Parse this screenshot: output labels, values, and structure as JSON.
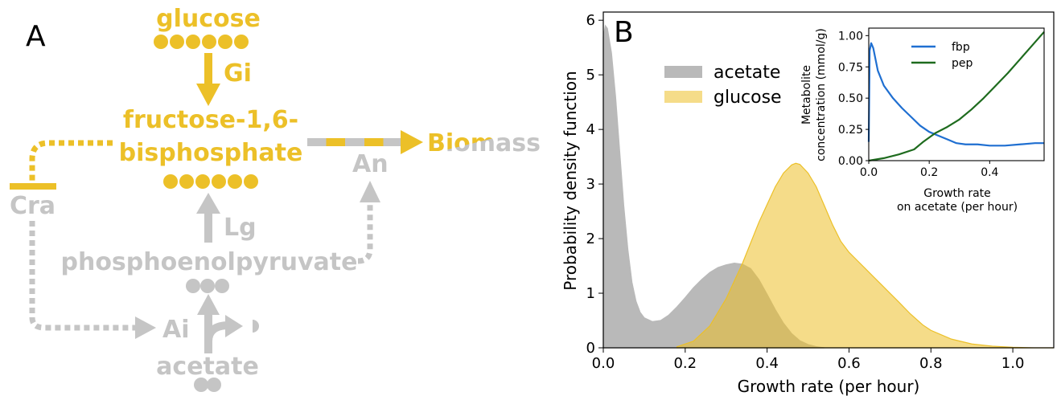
{
  "panel_a": {
    "letter": "A",
    "nodes": {
      "glucose": "glucose",
      "fbp_line1": "fructose-1,6-",
      "fbp_line2": "bisphosphate",
      "pep": "phosphoenolpyruvate",
      "acetate": "acetate",
      "biomass": "Biomass",
      "cra": "Cra"
    },
    "reactions": {
      "gi": "Gi",
      "lg": "Lg",
      "an": "An",
      "ai": "Ai"
    },
    "colors": {
      "glucose_path": "#ecc028",
      "acetate_path": "#c5c5c5"
    }
  },
  "panel_b": {
    "letter": "B",
    "chart_data": [
      {
        "type": "area",
        "xlabel": "Growth rate (per hour)",
        "ylabel": "Probability density function",
        "xlim": [
          0.0,
          1.1
        ],
        "ylim": [
          0,
          6.15
        ],
        "xticks": [
          "0.0",
          "0.2",
          "0.4",
          "0.6",
          "0.8",
          "1.0"
        ],
        "xtick_values": [
          0.0,
          0.2,
          0.4,
          0.6,
          0.8,
          1.0
        ],
        "yticks": [
          "0",
          "1",
          "2",
          "3",
          "4",
          "5",
          "6"
        ],
        "ytick_values": [
          0,
          1,
          2,
          3,
          4,
          5,
          6
        ],
        "legend_position": "top-left",
        "series": [
          {
            "name": "acetate",
            "color": "#b9b9b9",
            "x": [
              0.0,
              0.005,
              0.01,
              0.02,
              0.03,
              0.04,
              0.05,
              0.06,
              0.07,
              0.08,
              0.09,
              0.1,
              0.12,
              0.14,
              0.16,
              0.18,
              0.2,
              0.22,
              0.24,
              0.26,
              0.28,
              0.3,
              0.32,
              0.34,
              0.36,
              0.38,
              0.4,
              0.42,
              0.44,
              0.46,
              0.48,
              0.5,
              0.52,
              0.54
            ],
            "y": [
              5.7,
              5.9,
              5.85,
              5.4,
              4.6,
              3.6,
              2.6,
              1.8,
              1.2,
              0.85,
              0.65,
              0.55,
              0.48,
              0.5,
              0.6,
              0.75,
              0.92,
              1.1,
              1.25,
              1.38,
              1.47,
              1.52,
              1.55,
              1.53,
              1.45,
              1.25,
              0.98,
              0.7,
              0.45,
              0.26,
              0.13,
              0.06,
              0.02,
              0.0
            ]
          },
          {
            "name": "glucose",
            "color": "#ecc028",
            "x": [
              0.18,
              0.22,
              0.26,
              0.3,
              0.34,
              0.38,
              0.42,
              0.44,
              0.46,
              0.47,
              0.48,
              0.5,
              0.52,
              0.54,
              0.56,
              0.58,
              0.6,
              0.62,
              0.64,
              0.66,
              0.68,
              0.7,
              0.72,
              0.75,
              0.78,
              0.8,
              0.85,
              0.9,
              0.95,
              1.0,
              1.05,
              1.1
            ],
            "y": [
              0.02,
              0.12,
              0.4,
              0.9,
              1.55,
              2.3,
              2.95,
              3.2,
              3.35,
              3.38,
              3.36,
              3.2,
              2.95,
              2.6,
              2.25,
              1.95,
              1.75,
              1.6,
              1.45,
              1.3,
              1.15,
              1.0,
              0.85,
              0.62,
              0.42,
              0.32,
              0.16,
              0.07,
              0.03,
              0.01,
              0.0,
              0.0
            ]
          }
        ]
      },
      {
        "type": "line",
        "xlabel_line1": "Growth rate",
        "xlabel_line2": "on acetate (per hour)",
        "ylabel_line1": "Metabolite",
        "ylabel_line2": "concentration (mmol/g)",
        "xlim": [
          0.0,
          0.58
        ],
        "ylim": [
          0.0,
          1.06
        ],
        "xticks": [
          "0.0",
          "0.2",
          "0.4"
        ],
        "xtick_values": [
          0.0,
          0.2,
          0.4
        ],
        "yticks": [
          "0.00",
          "0.25",
          "0.50",
          "0.75",
          "1.00"
        ],
        "ytick_values": [
          0.0,
          0.25,
          0.5,
          0.75,
          1.0
        ],
        "legend_position": "top-center",
        "series": [
          {
            "name": "fbp",
            "color": "#1f6fd1",
            "x": [
              0.0,
              0.003,
              0.008,
              0.015,
              0.03,
              0.05,
              0.08,
              0.11,
              0.14,
              0.17,
              0.2,
              0.23,
              0.26,
              0.29,
              0.32,
              0.36,
              0.4,
              0.45,
              0.5,
              0.55,
              0.58
            ],
            "y": [
              0.15,
              0.88,
              0.94,
              0.9,
              0.72,
              0.6,
              0.5,
              0.42,
              0.35,
              0.28,
              0.23,
              0.2,
              0.17,
              0.14,
              0.13,
              0.13,
              0.12,
              0.12,
              0.13,
              0.14,
              0.14
            ]
          },
          {
            "name": "pep",
            "color": "#1e6b1e",
            "x": [
              0.0,
              0.05,
              0.1,
              0.15,
              0.18,
              0.22,
              0.26,
              0.3,
              0.34,
              0.38,
              0.42,
              0.46,
              0.5,
              0.54,
              0.58
            ],
            "y": [
              0.0,
              0.02,
              0.05,
              0.09,
              0.15,
              0.22,
              0.27,
              0.33,
              0.41,
              0.5,
              0.6,
              0.7,
              0.81,
              0.92,
              1.03
            ]
          }
        ]
      }
    ]
  }
}
